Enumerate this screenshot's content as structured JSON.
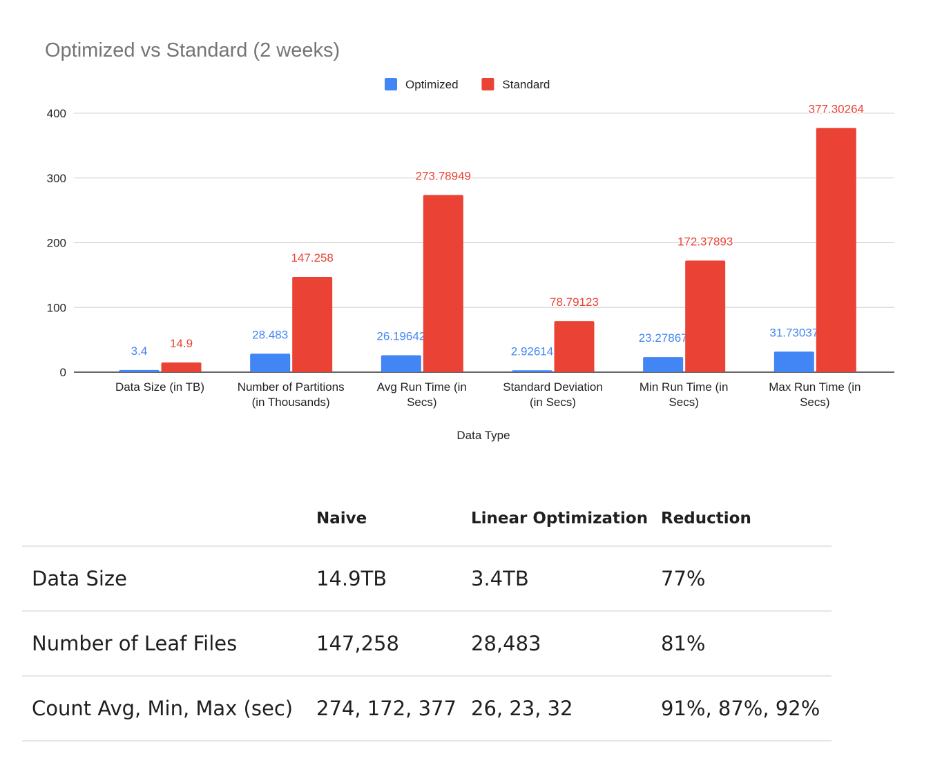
{
  "chart_data": {
    "type": "bar",
    "title": "Optimized vs Standard (2 weeks)",
    "xlabel": "Data Type",
    "ylabel": "",
    "ylim": [
      0,
      400
    ],
    "yticks": [
      0,
      100,
      200,
      300,
      400
    ],
    "grid": true,
    "legend_position": "top",
    "categories": [
      "Data Size (in TB)",
      "Number of Partitions (in Thousands)",
      "Avg Run Time (in Secs)",
      "Standard Deviation (in Secs)",
      "Min Run Time (in Secs)",
      "Max Run Time (in Secs)"
    ],
    "series": [
      {
        "name": "Optimized",
        "color": "#4285f4",
        "values": [
          3.4,
          28.483,
          26.19642,
          2.92614,
          23.27867,
          31.73037
        ],
        "labels": [
          "3.4",
          "28.483",
          "26.19642",
          "2.92614",
          "23.27867",
          "31.73037"
        ]
      },
      {
        "name": "Standard",
        "color": "#ea4335",
        "values": [
          14.9,
          147.258,
          273.78949,
          78.79123,
          172.37893,
          377.30264
        ],
        "labels": [
          "14.9",
          "147.258",
          "273.78949",
          "78.79123",
          "172.37893",
          "377.30264"
        ]
      }
    ]
  },
  "table": {
    "headers": [
      "",
      "Naive",
      "Linear Optimization",
      "Reduction"
    ],
    "rows": [
      [
        "Data Size",
        "14.9TB",
        "3.4TB",
        "77%"
      ],
      [
        "Number of Leaf Files",
        "147,258",
        "28,483",
        "81%"
      ],
      [
        "Count Avg, Min, Max (sec)",
        "274, 172, 377",
        "26, 23, 32",
        "91%, 87%, 92%"
      ]
    ]
  }
}
